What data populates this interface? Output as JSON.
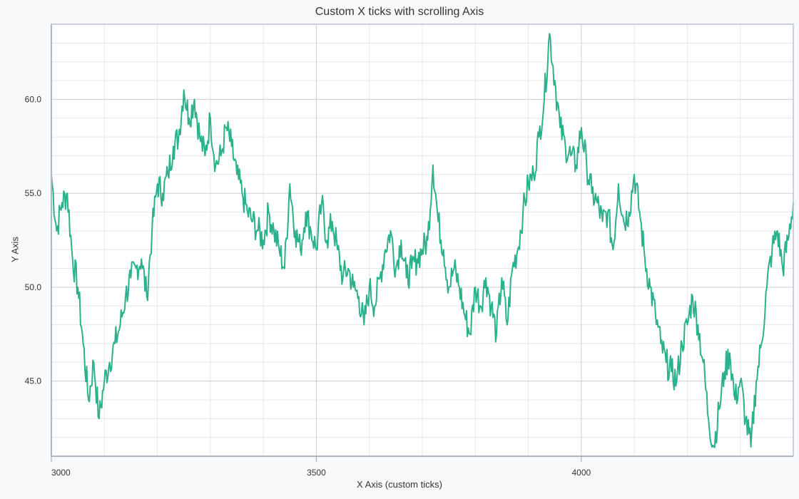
{
  "chart_data": {
    "type": "line",
    "title": "Custom X ticks with scrolling Axis",
    "xlabel": "X Axis (custom ticks)",
    "ylabel": "Y Axis",
    "xlim": [
      3000,
      4400
    ],
    "ylim": [
      41,
      64
    ],
    "x_ticks": [
      3000,
      3500,
      4000
    ],
    "x_tick_labels": [
      "3000",
      "3500",
      "4000"
    ],
    "y_ticks": [
      45,
      50,
      55,
      60
    ],
    "y_tick_labels": [
      "45.0",
      "50.0",
      "55.0",
      "60.0"
    ],
    "grid": true,
    "line_color": "#2bb18b",
    "background": "#ffffff",
    "series": [
      {
        "x": [
          3000,
          3010,
          3020,
          3030,
          3040,
          3050,
          3060,
          3070,
          3080,
          3090,
          3100,
          3110,
          3120,
          3130,
          3140,
          3150,
          3160,
          3170,
          3180,
          3190,
          3200,
          3210,
          3220,
          3230,
          3240,
          3250,
          3260,
          3270,
          3280,
          3290,
          3300,
          3310,
          3320,
          3330,
          3340,
          3350,
          3360,
          3370,
          3380,
          3390,
          3400,
          3410,
          3420,
          3430,
          3440,
          3450,
          3460,
          3470,
          3480,
          3490,
          3500,
          3510,
          3520,
          3530,
          3540,
          3550,
          3560,
          3570,
          3580,
          3590,
          3600,
          3610,
          3620,
          3630,
          3640,
          3650,
          3660,
          3670,
          3680,
          3690,
          3700,
          3710,
          3720,
          3730,
          3740,
          3750,
          3760,
          3770,
          3780,
          3790,
          3800,
          3810,
          3820,
          3830,
          3840,
          3850,
          3860,
          3870,
          3880,
          3890,
          3900,
          3910,
          3920,
          3930,
          3940,
          3950,
          3960,
          3970,
          3980,
          3990,
          4000,
          4010,
          4020,
          4030,
          4040,
          4050,
          4060,
          4070,
          4080,
          4090,
          4100,
          4110,
          4120,
          4130,
          4140,
          4150,
          4160,
          4170,
          4180,
          4190,
          4200,
          4210,
          4220,
          4230,
          4240,
          4250,
          4260,
          4270,
          4280,
          4290,
          4300,
          4310,
          4320,
          4330,
          4340,
          4350,
          4360,
          4370,
          4380,
          4390,
          4400
        ],
        "y": [
          56.0,
          53.0,
          54.5,
          55.0,
          51.5,
          50.0,
          47.0,
          44.0,
          46.0,
          43.0,
          45.0,
          46.0,
          47.0,
          48.0,
          49.5,
          50.5,
          51.0,
          51.5,
          49.5,
          53.0,
          55.5,
          55.0,
          56.0,
          57.5,
          58.0,
          60.5,
          59.0,
          60.0,
          58.0,
          57.0,
          59.0,
          56.5,
          57.0,
          58.5,
          57.5,
          56.0,
          55.0,
          54.0,
          53.5,
          53.0,
          52.5,
          54.0,
          53.0,
          52.0,
          51.0,
          55.5,
          53.0,
          52.0,
          54.0,
          53.0,
          52.0,
          54.5,
          52.5,
          53.5,
          52.0,
          50.5,
          51.0,
          50.0,
          49.5,
          48.0,
          50.0,
          49.0,
          50.5,
          52.0,
          53.0,
          51.0,
          52.5,
          50.5,
          51.0,
          51.5,
          52.0,
          52.5,
          56.5,
          53.5,
          52.0,
          50.0,
          51.0,
          50.0,
          48.5,
          47.5,
          50.0,
          49.0,
          50.5,
          49.0,
          47.5,
          50.5,
          48.0,
          51.0,
          52.0,
          54.0,
          55.5,
          56.0,
          58.0,
          60.0,
          63.5,
          61.0,
          58.5,
          57.5,
          57.0,
          56.5,
          58.5,
          56.5,
          55.0,
          54.5,
          53.5,
          54.0,
          52.0,
          55.5,
          53.5,
          54.0,
          56.0,
          54.0,
          51.5,
          50.0,
          48.5,
          47.0,
          46.0,
          45.5,
          45.0,
          47.0,
          48.0,
          49.5,
          48.0,
          46.0,
          43.0,
          41.5,
          43.5,
          45.5,
          46.5,
          44.0,
          45.0,
          43.0,
          41.5,
          45.0,
          47.0,
          50.0,
          52.0,
          53.0,
          51.0,
          52.5,
          54.5
        ]
      }
    ]
  }
}
